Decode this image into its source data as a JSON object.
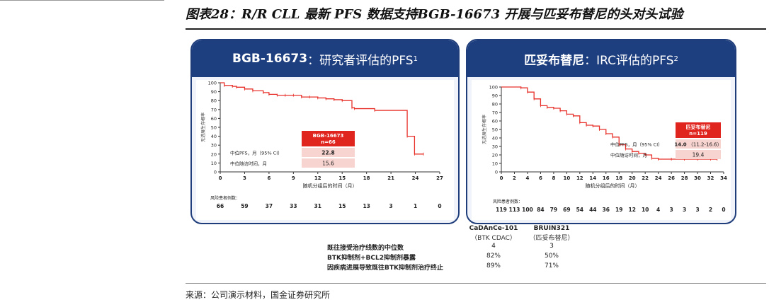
{
  "figure_title": "图表28：R/R CLL 最新 PFS 数据支持BGB-16673 开展与匹妥布替尼的头对头试验",
  "source": "来源：公司演示材料，国金证券研究所",
  "left_panel": {
    "heading_bold": "BGB-16673",
    "heading_rest": "：研究者评估的PFS",
    "heading_sup": "1"
  },
  "right_panel": {
    "heading_bold": "匹妥布替尼",
    "heading_rest": "：IRC评估的PFS",
    "heading_sup": "2"
  },
  "comparison_table": {
    "columns": [
      {
        "name": "CaDAnCe-101",
        "sub": "（BTK CDAC）"
      },
      {
        "name": "BRUIN321",
        "sub": "（匹妥布替尼）"
      }
    ],
    "rows": [
      {
        "label": "既往接受治疗线数的中位数",
        "values": [
          "4",
          "3"
        ]
      },
      {
        "label": "BTK抑制剂+BCL2抑制剂暴露",
        "values": [
          "82%",
          "50%"
        ]
      },
      {
        "label": "因疾病进展导致既往BTK抑制剂治疗终止",
        "values": [
          "89%",
          "71%"
        ]
      }
    ]
  },
  "colors": {
    "curve": "#e8312a",
    "panel_header": "#1e3f7f",
    "panel_bg": "#f0f4fa",
    "box_red": "#e0251e",
    "box_pink": "#f8d4d0"
  },
  "chart_data": [
    {
      "type": "line",
      "title": "BGB-16673：研究者评估的PFS",
      "xlabel": "随机分组后的时间（月）",
      "ylabel": "无进展生存概率",
      "xlim": [
        0,
        27
      ],
      "ylim": [
        0,
        100
      ],
      "xticks": [
        0,
        3,
        6,
        9,
        12,
        15,
        18,
        21,
        24,
        27
      ],
      "yticks": [
        0,
        10,
        20,
        30,
        40,
        50,
        60,
        70,
        80,
        90,
        100
      ],
      "series": [
        {
          "name": "BGB-16673",
          "x": [
            0,
            0.5,
            1.5,
            2,
            3,
            4,
            5.3,
            6,
            7,
            8,
            9,
            10,
            11,
            12,
            13,
            14,
            15,
            16.2,
            16.5,
            19,
            23,
            23.9,
            25
          ],
          "y": [
            100,
            97,
            96,
            95,
            93,
            91,
            89,
            87,
            86,
            86,
            86,
            84,
            84,
            83,
            82,
            81,
            80,
            72,
            71,
            69,
            40,
            20,
            20
          ]
        }
      ],
      "summary_box": {
        "header": "BGB-16673",
        "n": "n=66",
        "median_pfs": "22.8",
        "median_followup": "15.6"
      },
      "row_labels": {
        "median_pfs": "中位PFS，月（95% CI）",
        "median_followup": "中位随访时间，月"
      },
      "risk_label": "风险患者例数：",
      "at_risk": [
        "66",
        "59",
        "37",
        "33",
        "31",
        "15",
        "13",
        "3",
        "1",
        "0"
      ]
    },
    {
      "type": "line",
      "title": "匹妥布替尼：IRC评估的PFS",
      "xlabel": "随机分组后的时间（月）",
      "ylabel": "无进展生存概率",
      "xlim": [
        0,
        34
      ],
      "ylim": [
        0,
        100
      ],
      "xticks": [
        0,
        2,
        4,
        6,
        8,
        10,
        12,
        14,
        16,
        18,
        20,
        22,
        24,
        26,
        28,
        30,
        32,
        34
      ],
      "yticks": [
        0,
        10,
        20,
        30,
        40,
        50,
        60,
        70,
        80,
        90,
        100
      ],
      "series": [
        {
          "name": "匹妥布替尼",
          "x": [
            0,
            3,
            4,
            5,
            6,
            7,
            8,
            9,
            10,
            11,
            12,
            13,
            14,
            15,
            16,
            17,
            18,
            19,
            20,
            21,
            22,
            23,
            24,
            26,
            28,
            30,
            32,
            33
          ],
          "y": [
            100,
            99,
            94,
            86,
            78,
            76,
            75,
            72,
            68,
            66,
            58,
            55,
            54,
            50,
            45,
            41,
            32,
            27,
            24,
            22,
            20,
            16,
            15,
            15,
            15,
            15,
            15,
            15
          ]
        }
      ],
      "summary_box": {
        "header": "匹妥布替尼",
        "n": "n=119",
        "median_pfs": "14.0",
        "median_pfs_ci": "（11.2-16.6）",
        "median_followup": "19.4"
      },
      "row_labels": {
        "median_pfs": "中位PFS，月（95% CI）",
        "median_followup": "中位随访时间，月"
      },
      "risk_label": "风险患者例数：",
      "at_risk": [
        "119",
        "113",
        "100",
        "84",
        "79",
        "69",
        "54",
        "44",
        "36",
        "19",
        "12",
        "10",
        "4",
        "3",
        "3",
        "3",
        "2",
        "0"
      ]
    }
  ]
}
